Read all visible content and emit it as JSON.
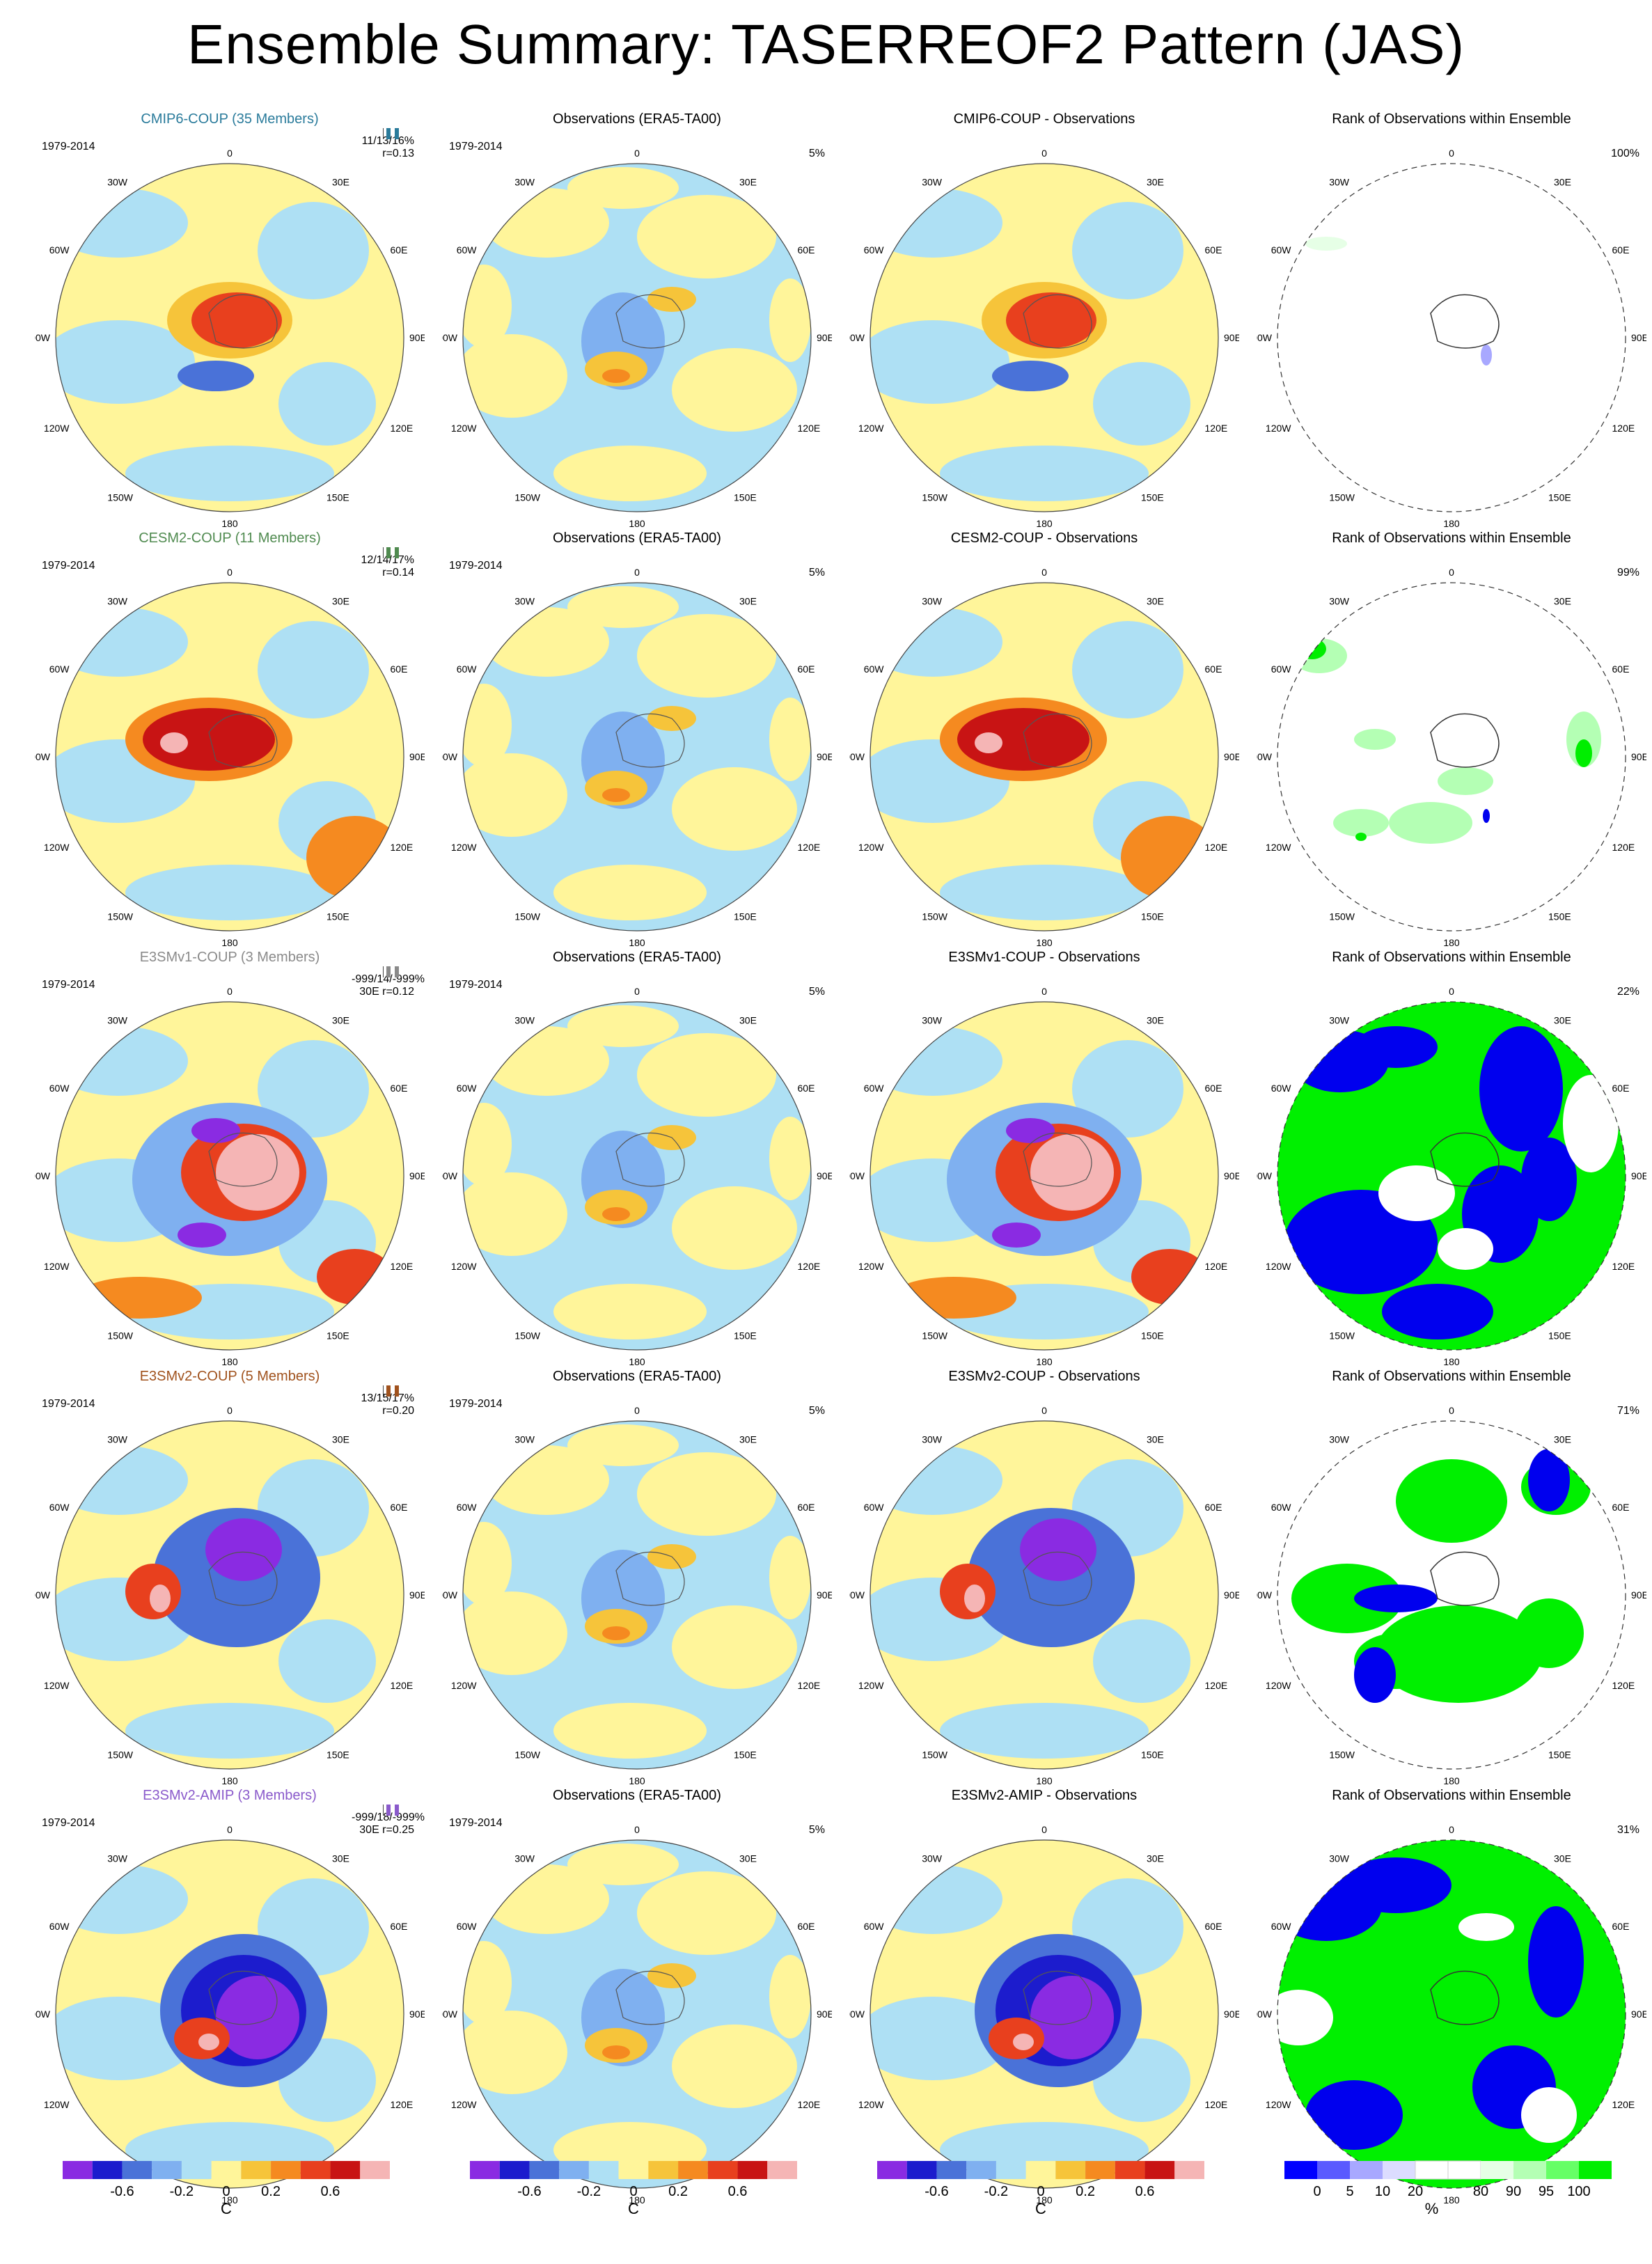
{
  "title": "Ensemble Summary: TASERREOF2 Pattern (JAS)",
  "period": "1979-2014",
  "lon_labels": {
    "top": "0",
    "bottom": "180",
    "tl30": "30W",
    "tr30": "30E",
    "l60": "60W",
    "r60": "60E",
    "l90": "90W",
    "r90": "90E",
    "l120": "120W",
    "r120": "120E",
    "l150": "150W",
    "r150": "150E"
  },
  "obs_title": "Observations (ERA5-TA00)",
  "rank_title": "Rank of Observations within Ensemble",
  "rows": [
    {
      "model_title": "CMIP6-COUP (35 Members)",
      "model_color": "#2a7b9b",
      "stats1": "11/13/16%",
      "stats2": "r=0.13",
      "diff_title": "CMIP6-COUP - Observations",
      "obs_pct": "5%",
      "rank_pct": "100%"
    },
    {
      "model_title": "CESM2-COUP (11 Members)",
      "model_color": "#4f8a4f",
      "stats1": "12/14/17%",
      "stats2": "r=0.14",
      "diff_title": "CESM2-COUP - Observations",
      "obs_pct": "5%",
      "rank_pct": "99%"
    },
    {
      "model_title": "E3SMv1-COUP (3 Members)",
      "model_color": "#8a8a8a",
      "stats1": "-999/14/-999%",
      "stats2": "30E  r=0.12",
      "diff_title": "E3SMv1-COUP - Observations",
      "obs_pct": "5%",
      "rank_pct": "22%"
    },
    {
      "model_title": "E3SMv2-COUP (5 Members)",
      "model_color": "#a0521d",
      "stats1": "13/15/17%",
      "stats2": "r=0.20",
      "diff_title": "E3SMv2-COUP - Observations",
      "obs_pct": "5%",
      "rank_pct": "71%"
    },
    {
      "model_title": "E3SMv2-AMIP (3 Members)",
      "model_color": "#8a5acb",
      "stats1": "-999/18/-999%",
      "stats2": "30E  r=0.25",
      "diff_title": "E3SMv2-AMIP - Observations",
      "obs_pct": "5%",
      "rank_pct": "31%"
    }
  ],
  "temp_colorbar": {
    "colors": [
      "#8a2be2",
      "#1c1ccd",
      "#4a72d8",
      "#7fb0f0",
      "#aee0f4",
      "#fff59a",
      "#f6c43a",
      "#f58a20",
      "#e8401e",
      "#c81414",
      "#f5b5b5"
    ],
    "ticks": [
      "-0.6",
      "-0.2",
      "0",
      "0.2",
      "0.6"
    ],
    "unit": "C"
  },
  "rank_colorbar": {
    "colors": [
      "#0000ff",
      "#5a5aff",
      "#a8a8ff",
      "#dcdcff",
      "#ffffff",
      "#ffffff",
      "#e6ffe6",
      "#b4ffb4",
      "#66ff66",
      "#00ee00"
    ],
    "ticks": [
      "0",
      "5",
      "10",
      "20",
      "80",
      "90",
      "95",
      "100"
    ],
    "unit": "%"
  }
}
